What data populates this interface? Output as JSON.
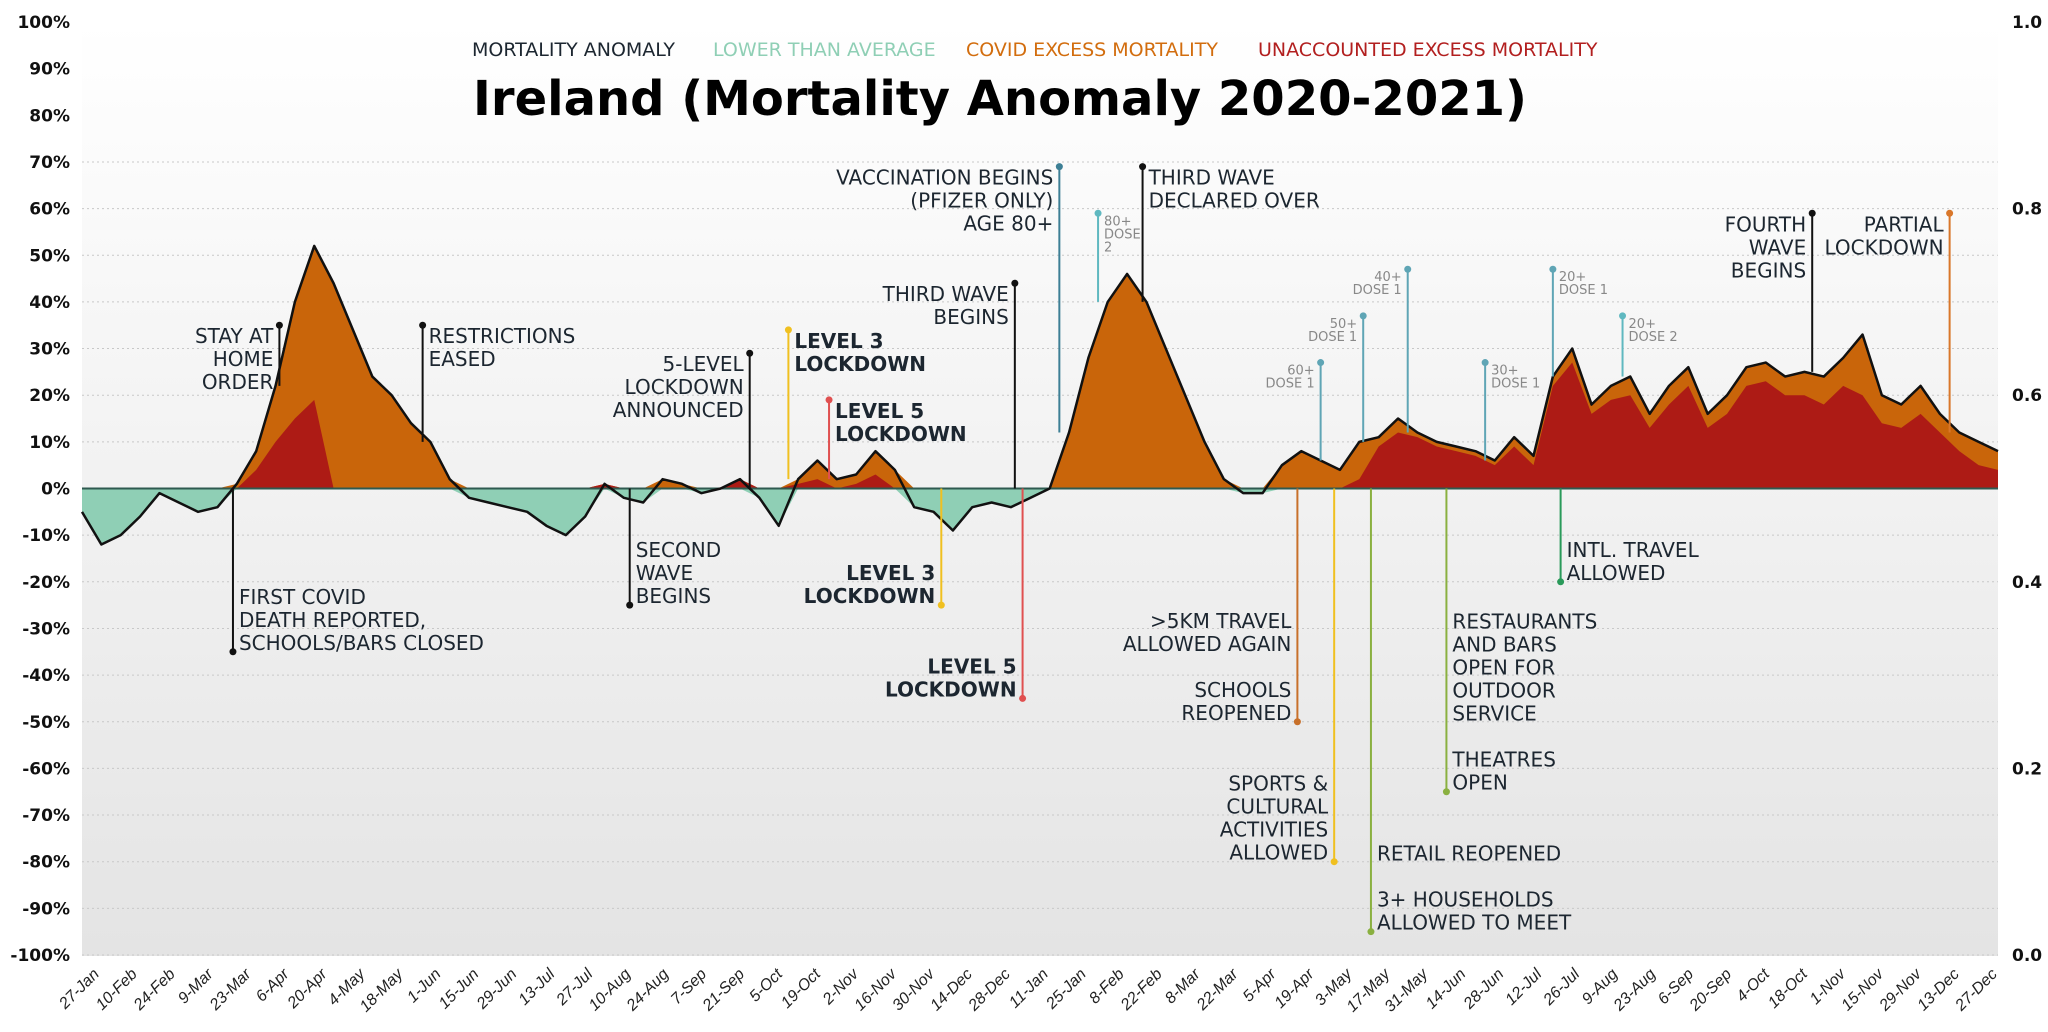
{
  "chart_data": {
    "type": "area",
    "title": "Ireland (Mortality Anomaly 2020-2021)",
    "legend": [
      {
        "label": "MORTALITY ANOMALY",
        "color": "#1c2630"
      },
      {
        "label": "LOWER THAN AVERAGE",
        "color": "#8fcfb5"
      },
      {
        "label": "COVID EXCESS MORTALITY",
        "color": "#d26d0e"
      },
      {
        "label": "UNACCOUNTED EXCESS MORTALITY",
        "color": "#b21f1f"
      }
    ],
    "legend_position": "top-center",
    "colors": {
      "anomaly_line": "#111111",
      "lower": "#8fcfb5",
      "covid": "#c9650a",
      "unaccounted": "#ad1b15",
      "grid": "#c8c8c8"
    },
    "ylim": [
      -100,
      100
    ],
    "y_ticks": [
      "100%",
      "90%",
      "80%",
      "70%",
      "60%",
      "50%",
      "40%",
      "30%",
      "20%",
      "10%",
      "0%",
      "-10%",
      "-20%",
      "-30%",
      "-40%",
      "-50%",
      "-60%",
      "-70%",
      "-80%",
      "-90%",
      "-100%"
    ],
    "y2lim": [
      0,
      1
    ],
    "y2_ticks": [
      "1.0",
      "0.8",
      "0.6",
      "0.4",
      "0.2",
      "0.0"
    ],
    "x_ticks": [
      "27-Jan",
      "10-Feb",
      "24-Feb",
      "9-Mar",
      "23-Mar",
      "6-Apr",
      "20-Apr",
      "4-May",
      "18-May",
      "1-Jun",
      "15-Jun",
      "29-Jun",
      "13-Jul",
      "27-Jul",
      "10-Aug",
      "24-Aug",
      "7-Sep",
      "21-Sep",
      "5-Oct",
      "19-Oct",
      "2-Nov",
      "16-Nov",
      "30-Nov",
      "14-Dec",
      "28-Dec",
      "11-Jan",
      "25-Jan",
      "8-Feb",
      "22-Feb",
      "8-Mar",
      "22-Mar",
      "5-Apr",
      "19-Apr",
      "3-May",
      "17-May",
      "31-May",
      "14-Jun",
      "28-Jun",
      "12-Jul",
      "26-Jul",
      "9-Aug",
      "23-Aug",
      "6-Sep",
      "20-Sep",
      "4-Oct",
      "18-Oct",
      "1-Nov",
      "15-Nov",
      "29-Nov",
      "13-Dec",
      "27-Dec"
    ],
    "series_x_unit": "weeks since 20-Jan-2020",
    "series": [
      {
        "name": "Mortality anomaly (%)",
        "values": [
          -5,
          -12,
          -10,
          -6,
          -1,
          -3,
          -5,
          -4,
          1,
          8,
          22,
          40,
          52,
          44,
          34,
          24,
          20,
          14,
          10,
          2,
          -2,
          -3,
          -4,
          -5,
          -8,
          -10,
          -6,
          1,
          -2,
          -3,
          2,
          1,
          -1,
          0,
          2,
          -2,
          -8,
          2,
          6,
          2,
          3,
          8,
          4,
          -4,
          -5,
          -9,
          -4,
          -3,
          -4,
          -2,
          0,
          12,
          28,
          40,
          46,
          40,
          30,
          20,
          10,
          2,
          -1,
          -1,
          5,
          8,
          6,
          4,
          10,
          11,
          15,
          12,
          10,
          9,
          8,
          6,
          11,
          7,
          24,
          30,
          18,
          22,
          24,
          16,
          22,
          26,
          16,
          20,
          26,
          27,
          24,
          25,
          24,
          28,
          33,
          20,
          18,
          22,
          16,
          12,
          10,
          8
        ]
      },
      {
        "name": "Unaccounted excess mortality (%)",
        "values": [
          0,
          0,
          0,
          0,
          0,
          0,
          0,
          0,
          0,
          4,
          10,
          15,
          19,
          0,
          0,
          0,
          0,
          0,
          0,
          0,
          0,
          0,
          0,
          0,
          0,
          0,
          0,
          1,
          0,
          0,
          0,
          0,
          0,
          0,
          2,
          0,
          0,
          1,
          2,
          0,
          1,
          3,
          0,
          0,
          0,
          0,
          0,
          0,
          0,
          0,
          0,
          0,
          0,
          0,
          0,
          0,
          0,
          0,
          0,
          0,
          0,
          0,
          0,
          0,
          0,
          0,
          2,
          9,
          12,
          11,
          9,
          8,
          7,
          5,
          9,
          5,
          22,
          27,
          16,
          19,
          20,
          13,
          18,
          22,
          13,
          16,
          22,
          23,
          20,
          20,
          18,
          22,
          20,
          14,
          13,
          16,
          12,
          8,
          5,
          4
        ]
      }
    ],
    "annotations_above": [
      {
        "label": "STAY AT\nHOME\nORDER",
        "side": "left",
        "value": 35,
        "color": "#111111"
      },
      {
        "label": "RESTRICTIONS\nEASED",
        "side": "right",
        "value": 35,
        "color": "#111111"
      },
      {
        "label": "5-LEVEL\nLOCKDOWN\nANNOUNCED",
        "side": "left",
        "value": 29,
        "color": "#111111"
      },
      {
        "label": "LEVEL 3\nLOCKDOWN",
        "side": "right",
        "value": 34,
        "color": "#f0c020",
        "bold": true
      },
      {
        "label": "LEVEL 5\nLOCKDOWN",
        "side": "right",
        "value": 19,
        "color": "#e05050",
        "bold": true
      },
      {
        "label": "THIRD WAVE\nBEGINS",
        "side": "left",
        "value": 44,
        "color": "#111111"
      },
      {
        "label": "VACCINATION BEGINS\n(PFIZER ONLY)\nAGE 80+",
        "side": "left",
        "value": 69,
        "color": "#3d7f95"
      },
      {
        "label": "80+\nDOSE\n2",
        "side": "right",
        "value": 59,
        "color": "#5fb8c0",
        "small": true
      },
      {
        "label": "THIRD WAVE\nDECLARED OVER",
        "side": "right",
        "value": 69,
        "color": "#111111"
      },
      {
        "label": "60+\nDOSE 1",
        "side": "left",
        "value": 27,
        "color": "#5fa5b5",
        "small": true
      },
      {
        "label": "50+\nDOSE 1",
        "side": "left",
        "value": 37,
        "color": "#5fa5b5",
        "small": true
      },
      {
        "label": "40+\nDOSE 1",
        "side": "left",
        "value": 47,
        "color": "#5fa5b5",
        "small": true
      },
      {
        "label": "30+\nDOSE 1",
        "side": "right",
        "value": 27,
        "color": "#5fa5b5",
        "small": true
      },
      {
        "label": "20+\nDOSE 1",
        "side": "right",
        "value": 47,
        "color": "#5fa5b5",
        "small": true
      },
      {
        "label": "20+\nDOSE 2",
        "side": "right",
        "value": 37,
        "color": "#5fb8c0",
        "small": true
      },
      {
        "label": "FOURTH\nWAVE\nBEGINS",
        "side": "left",
        "value": 59,
        "color": "#111111"
      },
      {
        "label": "PARTIAL\nLOCKDOWN",
        "side": "left",
        "value": 59,
        "color": "#d9772a"
      }
    ],
    "annotations_below": [
      {
        "label": "FIRST COVID\nDEATH REPORTED,\nSCHOOLS/BARS CLOSED",
        "side": "right",
        "value": -35,
        "color": "#111111"
      },
      {
        "label": "SECOND\nWAVE\nBEGINS",
        "side": "right",
        "value": -25,
        "color": "#111111"
      },
      {
        "label": "LEVEL 3\nLOCKDOWN",
        "side": "left",
        "value": -25,
        "color": "#f0c020",
        "bold": true
      },
      {
        "label": "LEVEL 5\nLOCKDOWN",
        "side": "left",
        "value": -45,
        "color": "#e05050",
        "bold": true
      },
      {
        "label": ">5KM TRAVEL\nALLOWED AGAIN\n\nSCHOOLS\nREOPENED",
        "side": "left",
        "value": -50,
        "color": "#c8702a"
      },
      {
        "label": "SPORTS &\nCULTURAL\nACTIVITIES\nALLOWED",
        "side": "left",
        "value": -80,
        "color": "#f0c020"
      },
      {
        "label": "RETAIL REOPENED\n\n3+ HOUSEHOLDS\nALLOWED TO MEET",
        "side": "right",
        "value": -95,
        "color": "#8ab040"
      },
      {
        "label": "RESTAURANTS\nAND BARS\nOPEN FOR\nOUTDOOR\nSERVICE\n\nTHEATRES\nOPEN",
        "side": "right",
        "value": -65,
        "color": "#8ab040"
      },
      {
        "label": "INTL. TRAVEL\nALLOWED",
        "side": "right",
        "value": -20,
        "color": "#2a9a5a"
      }
    ]
  }
}
